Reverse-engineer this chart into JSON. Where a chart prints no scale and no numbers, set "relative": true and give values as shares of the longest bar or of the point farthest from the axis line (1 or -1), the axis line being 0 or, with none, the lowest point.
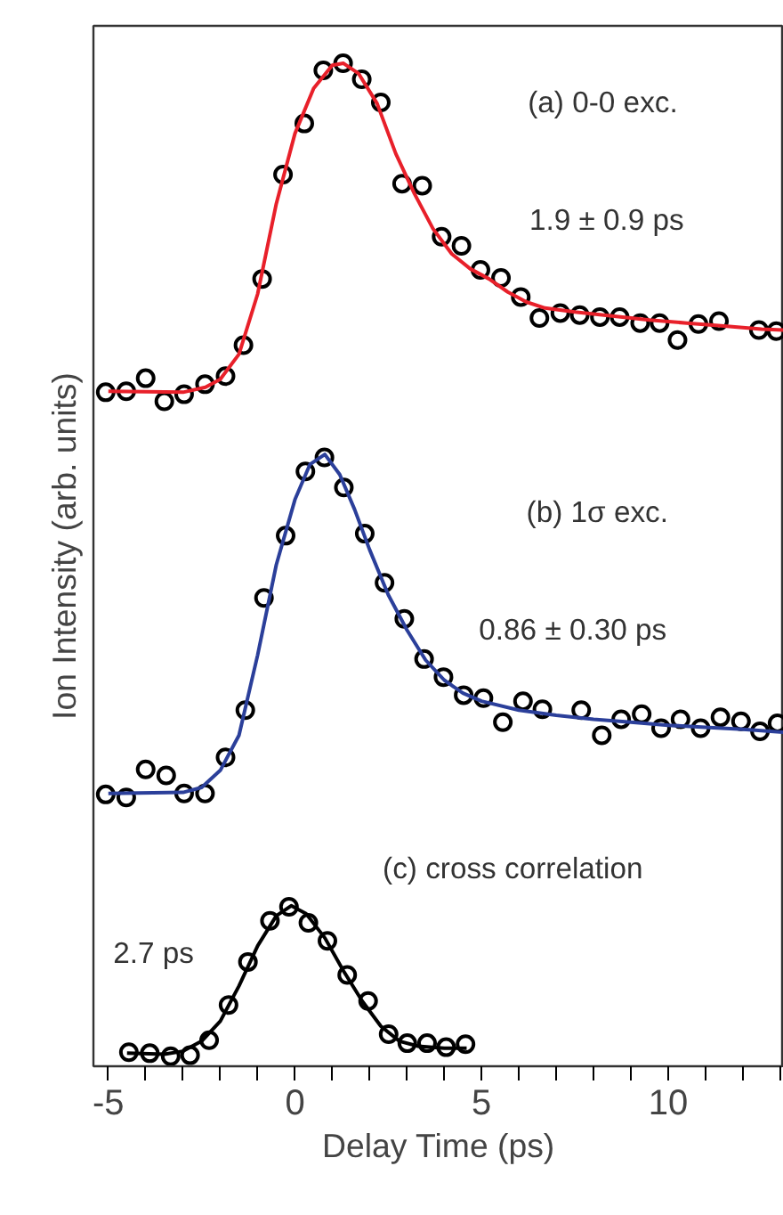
{
  "chart_data": {
    "type": "scatter",
    "relative": true,
    "xlabel": "Delay Time (ps)",
    "ylabel": "Ion Intensity (arb. units)",
    "xlim": [
      -5.4,
      13.1
    ],
    "xticks": [
      -5,
      {
        "value": -4,
        "label": null
      },
      {
        "value": -3,
        "label": null
      },
      {
        "value": -2,
        "label": null
      },
      {
        "value": -1,
        "label": null
      },
      0,
      {
        "value": 1,
        "label": null
      },
      {
        "value": 2,
        "label": null
      },
      {
        "value": 3,
        "label": null
      },
      {
        "value": 4,
        "label": null
      },
      5,
      {
        "value": 6,
        "label": null
      },
      {
        "value": 7,
        "label": null
      },
      {
        "value": 8,
        "label": null
      },
      {
        "value": 9,
        "label": null
      },
      10,
      {
        "value": 11,
        "label": null
      },
      {
        "value": 12,
        "label": null
      },
      {
        "value": 13,
        "label": null
      }
    ],
    "tick_labels": "x",
    "grid": false,
    "series": [
      {
        "marker": "circle",
        "color": "#000000",
        "x": [
          -5.07,
          -4.52,
          -4.0,
          -3.5,
          -2.97,
          -2.41,
          -1.86,
          -1.38,
          -0.88,
          -0.32,
          0.25,
          0.76,
          1.29,
          1.79,
          2.3,
          2.87,
          3.41,
          3.93,
          4.46,
          4.97,
          5.52,
          6.05,
          6.55,
          7.11,
          7.63,
          8.17,
          8.7,
          9.25,
          9.77,
          10.25,
          10.81,
          11.36,
          12.43,
          12.9
        ],
        "values": [
          0.672,
          0.673,
          0.686,
          0.663,
          0.67,
          0.68,
          0.688,
          0.719,
          0.785,
          0.889,
          0.94,
          0.993,
          1.0,
          0.984,
          0.961,
          0.88,
          0.878,
          0.827,
          0.818,
          0.794,
          0.786,
          0.767,
          0.746,
          0.751,
          0.749,
          0.747,
          0.747,
          0.741,
          0.741,
          0.724,
          0.74,
          0.743,
          0.734,
          0.733
        ]
      },
      {
        "type": "line",
        "marker": "none",
        "color": "#e8202a",
        "x": [
          -5,
          -3,
          -2.4,
          -2,
          -1.5,
          -1,
          -0.5,
          0,
          0.5,
          1.0,
          1.3,
          1.7,
          2.2,
          2.7,
          3.2,
          3.7,
          4.2,
          4.7,
          5.2,
          5.7,
          6.2,
          6.7,
          7.5,
          8.5,
          9.5,
          10.5,
          11.5,
          12.5,
          13.1
        ],
        "values": [
          0.673,
          0.672,
          0.677,
          0.685,
          0.71,
          0.77,
          0.86,
          0.93,
          0.975,
          0.998,
          1.0,
          0.99,
          0.96,
          0.91,
          0.87,
          0.835,
          0.81,
          0.795,
          0.785,
          0.772,
          0.762,
          0.756,
          0.752,
          0.748,
          0.744,
          0.741,
          0.738,
          0.735,
          0.734
        ]
      },
      {
        "marker": "circle",
        "color": "#000000",
        "x": [
          -5.07,
          -4.52,
          -4.0,
          -3.45,
          -2.97,
          -2.41,
          -1.86,
          -1.33,
          -0.83,
          -0.25,
          0.28,
          0.79,
          1.31,
          1.87,
          2.4,
          2.93,
          3.46,
          3.98,
          4.52,
          5.05,
          5.57,
          6.11,
          6.63,
          7.67,
          8.22,
          8.74,
          9.29,
          9.81,
          10.33,
          10.87,
          11.4,
          11.95,
          12.46,
          12.93
        ],
        "values": [
          0.271,
          0.268,
          0.296,
          0.29,
          0.272,
          0.272,
          0.308,
          0.355,
          0.467,
          0.529,
          0.593,
          0.607,
          0.577,
          0.531,
          0.482,
          0.446,
          0.406,
          0.388,
          0.37,
          0.367,
          0.343,
          0.364,
          0.356,
          0.355,
          0.33,
          0.346,
          0.351,
          0.337,
          0.346,
          0.337,
          0.348,
          0.344,
          0.334,
          0.342
        ]
      },
      {
        "type": "line",
        "marker": "none",
        "color": "#2b3f9a",
        "x": [
          -5,
          -3,
          -2.5,
          -2,
          -1.5,
          -1,
          -0.5,
          0,
          0.4,
          0.8,
          1.2,
          1.6,
          2.0,
          2.5,
          3.0,
          3.5,
          4.0,
          4.5,
          5,
          6,
          7,
          8,
          9,
          10,
          11,
          12,
          13.1
        ],
        "values": [
          0.272,
          0.273,
          0.278,
          0.295,
          0.33,
          0.41,
          0.5,
          0.565,
          0.6,
          0.61,
          0.59,
          0.555,
          0.515,
          0.47,
          0.435,
          0.405,
          0.385,
          0.372,
          0.364,
          0.355,
          0.35,
          0.346,
          0.343,
          0.34,
          0.338,
          0.336,
          0.333
        ]
      },
      {
        "marker": "circle",
        "color": "#000000",
        "x": [
          -4.45,
          -3.89,
          -3.33,
          -2.81,
          -2.3,
          -1.78,
          -1.26,
          -0.67,
          -0.16,
          0.36,
          0.87,
          1.4,
          1.96,
          2.51,
          3.01,
          3.54,
          4.05,
          4.57
        ],
        "values": [
          0.014,
          0.013,
          0.01,
          0.011,
          0.026,
          0.061,
          0.104,
          0.145,
          0.159,
          0.143,
          0.125,
          0.091,
          0.065,
          0.032,
          0.023,
          0.023,
          0.019,
          0.022
        ]
      },
      {
        "type": "line",
        "marker": "none",
        "color": "#000000",
        "x": [
          -4.5,
          -3.5,
          -3,
          -2.5,
          -2,
          -1.5,
          -1,
          -0.5,
          -0.1,
          0.3,
          0.8,
          1.3,
          1.8,
          2.3,
          2.8,
          3.3,
          4.0,
          4.6
        ],
        "values": [
          0.013,
          0.012,
          0.015,
          0.025,
          0.045,
          0.08,
          0.12,
          0.15,
          0.16,
          0.152,
          0.128,
          0.095,
          0.065,
          0.04,
          0.025,
          0.02,
          0.018,
          0.018
        ]
      }
    ],
    "annotations": [
      "(a) 0-0 exc.",
      "1.9 ± 0.9 ps",
      "(b) 1σ exc.",
      "0.86 ± 0.30 ps",
      "(c) cross correlation",
      "2.7 ps"
    ]
  }
}
